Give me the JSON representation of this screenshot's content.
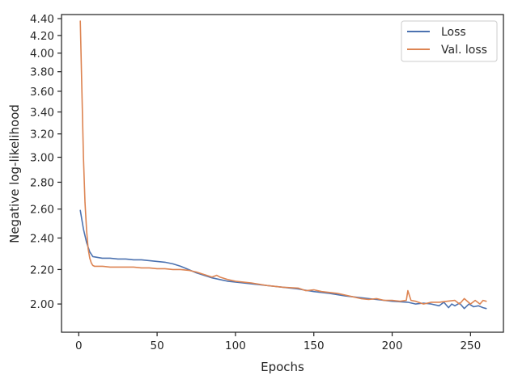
{
  "chart_data": {
    "type": "line",
    "xlabel": "Epochs",
    "ylabel": "Negative log-likelihood",
    "xlim": [
      -11,
      271
    ],
    "ylim": [
      1.85,
      4.45
    ],
    "y_scale": "log",
    "grid": false,
    "legend_position": "top-right",
    "xticks": [
      0,
      50,
      100,
      150,
      200,
      250
    ],
    "yticks": [
      2.0,
      2.2,
      2.4,
      2.6,
      2.8,
      3.0,
      3.2,
      3.4,
      3.6,
      3.8,
      4.0,
      4.2,
      4.4
    ],
    "ytick_labels": [
      "2.00",
      "2.20",
      "2.40",
      "2.60",
      "2.80",
      "3.00",
      "3.20",
      "3.40",
      "3.60",
      "3.80",
      "4.00",
      "4.20",
      "4.40"
    ],
    "series": [
      {
        "name": "Loss",
        "color": "#4c72b0",
        "x": [
          1,
          3,
          5,
          7,
          9,
          12,
          15,
          20,
          25,
          30,
          35,
          40,
          45,
          50,
          55,
          60,
          65,
          70,
          75,
          80,
          85,
          90,
          95,
          100,
          110,
          120,
          130,
          140,
          150,
          160,
          170,
          180,
          190,
          200,
          210,
          215,
          220,
          225,
          230,
          233,
          236,
          238,
          240,
          243,
          246,
          249,
          252,
          255,
          258,
          260
        ],
        "y": [
          2.59,
          2.46,
          2.37,
          2.31,
          2.28,
          2.275,
          2.27,
          2.27,
          2.265,
          2.265,
          2.26,
          2.26,
          2.255,
          2.25,
          2.245,
          2.235,
          2.22,
          2.2,
          2.18,
          2.165,
          2.15,
          2.14,
          2.13,
          2.125,
          2.115,
          2.105,
          2.095,
          2.085,
          2.07,
          2.06,
          2.045,
          2.035,
          2.025,
          2.015,
          2.01,
          2.0,
          2.005,
          2.0,
          1.99,
          2.01,
          1.98,
          2.0,
          1.99,
          2.005,
          1.975,
          2.0,
          1.985,
          1.99,
          1.98,
          1.975
        ]
      },
      {
        "name": "Val. loss",
        "color": "#dd8452",
        "x": [
          1,
          2,
          3,
          4,
          5,
          6,
          7,
          8,
          9,
          10,
          12,
          15,
          20,
          25,
          30,
          35,
          40,
          45,
          50,
          55,
          60,
          65,
          70,
          75,
          80,
          85,
          88,
          90,
          95,
          100,
          110,
          120,
          130,
          140,
          145,
          150,
          155,
          160,
          165,
          170,
          175,
          180,
          185,
          190,
          195,
          200,
          205,
          209,
          210,
          212,
          215,
          220,
          225,
          230,
          235,
          240,
          243,
          246,
          250,
          253,
          256,
          258,
          260
        ],
        "y": [
          4.37,
          3.6,
          3.0,
          2.65,
          2.45,
          2.33,
          2.27,
          2.24,
          2.225,
          2.22,
          2.22,
          2.22,
          2.215,
          2.215,
          2.215,
          2.215,
          2.21,
          2.21,
          2.205,
          2.205,
          2.2,
          2.2,
          2.195,
          2.185,
          2.17,
          2.155,
          2.165,
          2.155,
          2.14,
          2.13,
          2.12,
          2.105,
          2.095,
          2.09,
          2.075,
          2.08,
          2.07,
          2.065,
          2.06,
          2.05,
          2.04,
          2.03,
          2.025,
          2.03,
          2.02,
          2.02,
          2.015,
          2.02,
          2.075,
          2.02,
          2.015,
          2.0,
          2.01,
          2.01,
          2.015,
          2.02,
          2.0,
          2.03,
          2.0,
          2.02,
          2.0,
          2.02,
          2.015
        ]
      }
    ]
  }
}
